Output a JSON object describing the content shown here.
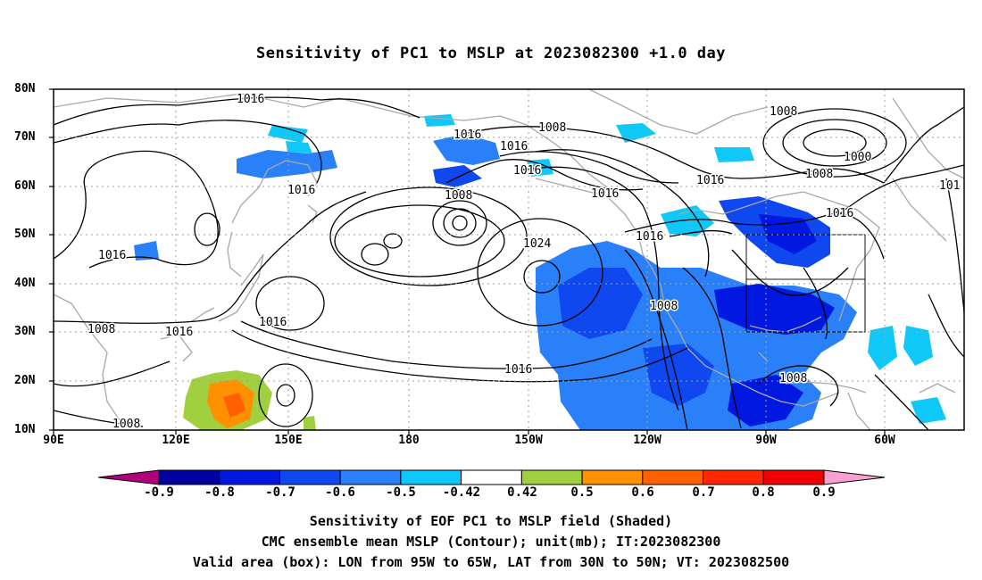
{
  "title": "Sensitivity of PC1 to MSLP at 2023082300 +1.0 day",
  "lat_labels": [
    "80N",
    "70N",
    "60N",
    "50N",
    "40N",
    "30N",
    "20N",
    "10N"
  ],
  "lon_labels": [
    "90E",
    "120E",
    "150E",
    "180",
    "150W",
    "120W",
    "90W",
    "60W"
  ],
  "contour_labels": [
    "1016",
    "1008",
    "1016",
    "1016",
    "1008",
    "1000",
    "1008",
    "1016",
    "1016",
    "1008",
    "1016",
    "1016",
    "1016",
    "101",
    "1016",
    "1016",
    "1024",
    "1016",
    "1008",
    "1008",
    "1016",
    "1016",
    "1008",
    "1008"
  ],
  "colorbar": {
    "labels": [
      "-0.9",
      "-0.8",
      "-0.7",
      "-0.6",
      "-0.5",
      "-0.42",
      "0.42",
      "0.5",
      "0.6",
      "0.7",
      "0.8",
      "0.9"
    ],
    "colors": [
      "#b0007c",
      "#0000a0",
      "#0018e0",
      "#1048f0",
      "#2a80f8",
      "#10c8f8",
      "#ffffff",
      "#a0d040",
      "#ff9000",
      "#ff6000",
      "#ff2800",
      "#f00000",
      "#f8a0d0"
    ]
  },
  "valid_box": {
    "lon_from": "95W",
    "lon_to": "65W",
    "lat_from": "30N",
    "lat_to": "50N"
  },
  "footer": {
    "line1": "Sensitivity of EOF PC1 to MSLP field (Shaded)",
    "line2": "CMC ensemble mean MSLP (Contour); unit(mb); IT:2023082300",
    "line3": "Valid area (box): LON from 95W to 65W, LAT from 30N to 50N; VT: 2023082500"
  }
}
